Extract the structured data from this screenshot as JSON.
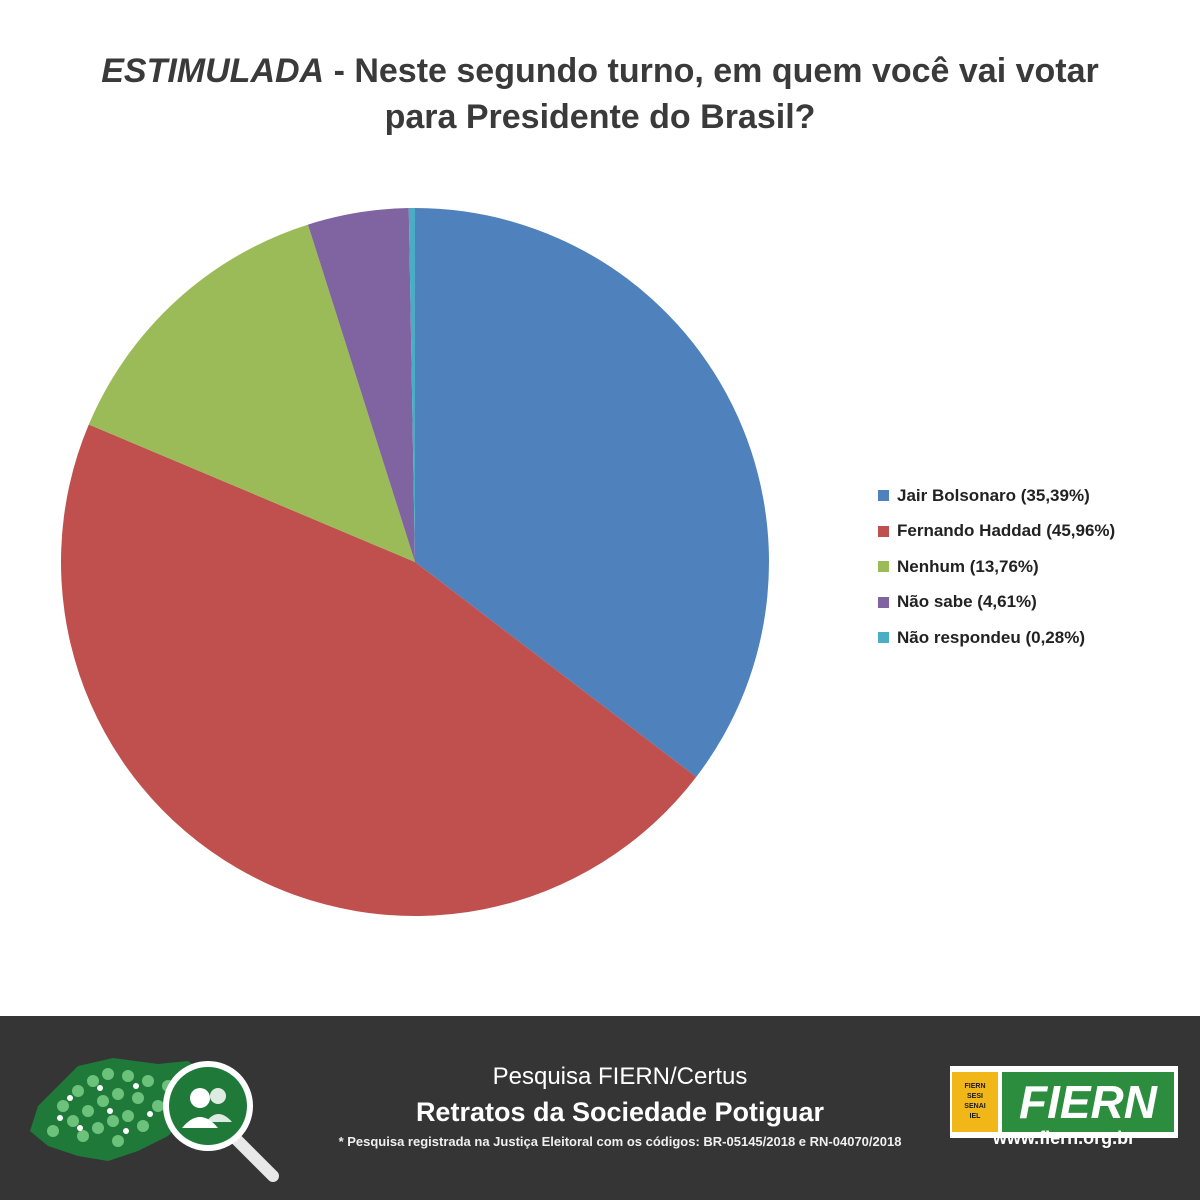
{
  "title": {
    "emphasis": "ESTIMULADA",
    "line1_rest": " - Neste segundo turno, em quem você vai votar",
    "line2": "para Presidente do Brasil?"
  },
  "chart_data": {
    "type": "pie",
    "title": "ESTIMULADA - Neste segundo turno, em quem você vai votar para Presidente do Brasil?",
    "legend_position": "right",
    "start": "top, clockwise",
    "slices": [
      {
        "label": "Jair Bolsonaro (35,39%)",
        "value": 35.39,
        "color": "#4f81bd"
      },
      {
        "label": "Fernando Haddad (45,96%)",
        "value": 45.96,
        "color": "#c0504d"
      },
      {
        "label": "Nenhum (13,76%)",
        "value": 13.76,
        "color": "#9bbb59"
      },
      {
        "label": "Não sabe (4,61%)",
        "value": 4.61,
        "color": "#8064a2"
      },
      {
        "label": "Não respondeu (0,28%)",
        "value": 0.28,
        "color": "#4bacc6"
      }
    ]
  },
  "footer": {
    "line1": "Pesquisa FIERN/Certus",
    "line2": "Retratos da Sociedade Potiguar",
    "line3": "* Pesquisa registrada na Justiça Eleitoral com os códigos: BR-05145/2018 e RN-04070/2018",
    "logo_small": [
      "FIERN",
      "SESI",
      "SENAI",
      "IEL"
    ],
    "logo_main": "FIERN",
    "url": "www.fiern.org.br",
    "bg_color": "#353535"
  }
}
